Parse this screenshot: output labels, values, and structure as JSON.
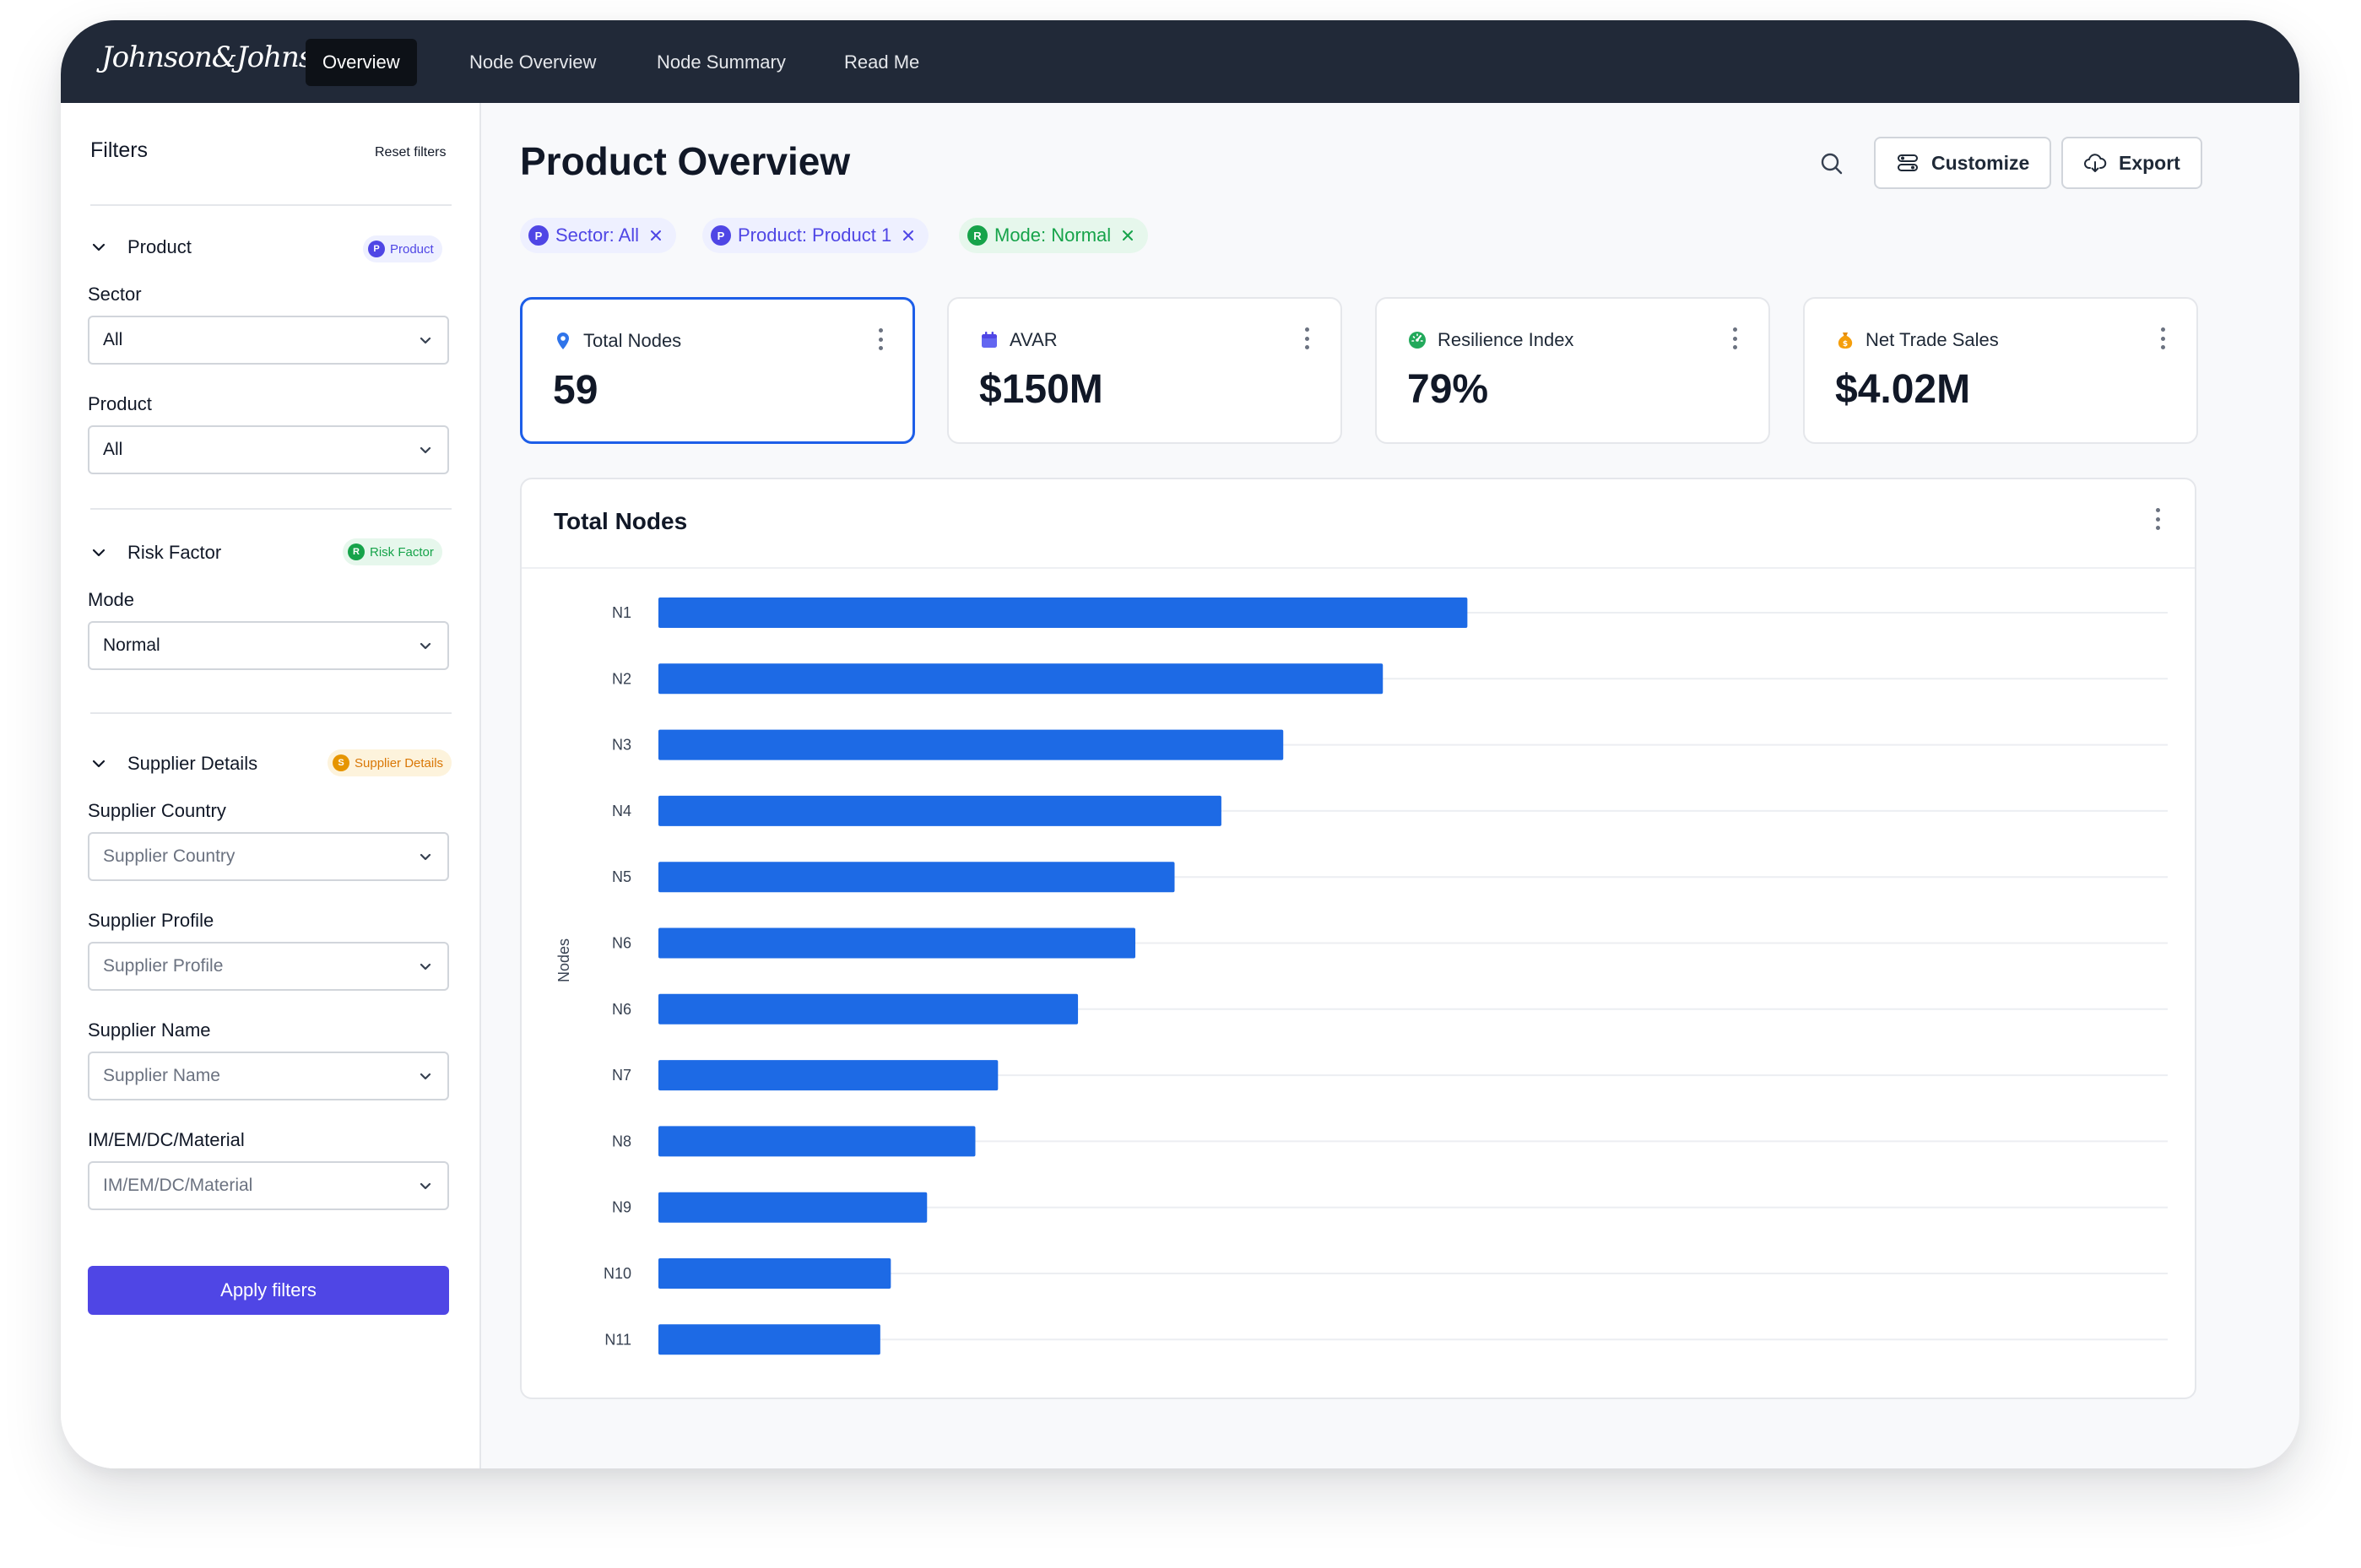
{
  "brand": {
    "logo_text": "Johnson&Johnson"
  },
  "nav": {
    "tabs": [
      {
        "label": "Overview",
        "active": true
      },
      {
        "label": "Node Overview",
        "active": false
      },
      {
        "label": "Node Summary",
        "active": false
      },
      {
        "label": "Read Me",
        "active": false
      }
    ]
  },
  "sidebar": {
    "title": "Filters",
    "reset_label": "Reset filters",
    "sections": [
      {
        "title": "Product",
        "badge": "Product",
        "badge_letter": "P",
        "badge_color": "#4f46e5"
      },
      {
        "title": "Risk Factor",
        "badge": "Risk Factor",
        "badge_letter": "R",
        "badge_color": "#16a34a"
      },
      {
        "title": "Supplier Details",
        "badge": "Supplier Details",
        "badge_letter": "S",
        "badge_color": "#e69500"
      }
    ],
    "fields": {
      "sector": {
        "label": "Sector",
        "value": "All"
      },
      "product": {
        "label": "Product",
        "value": "All"
      },
      "mode": {
        "label": "Mode",
        "value": "Normal"
      },
      "supplier_country": {
        "label": "Supplier Country",
        "placeholder": "Supplier Country"
      },
      "supplier_profile": {
        "label": "Supplier Profile",
        "placeholder": "Supplier Profile"
      },
      "supplier_name": {
        "label": "Supplier Name",
        "placeholder": "Supplier Name"
      },
      "material": {
        "label": "IM/EM/DC/Material",
        "placeholder": "IM/EM/DC/Material"
      }
    },
    "apply_label": "Apply filters"
  },
  "main": {
    "title": "Product Overview",
    "customize_label": "Customize",
    "export_label": "Export",
    "active_filters": [
      {
        "label": "Sector: All",
        "letter": "P"
      },
      {
        "label": "Product: Product 1",
        "letter": "P"
      },
      {
        "label": "Mode: Normal",
        "letter": "R"
      }
    ],
    "kpis": [
      {
        "label": "Total Nodes",
        "value": "59",
        "icon": "map-pin-icon",
        "selected": true
      },
      {
        "label": "AVAR",
        "value": "$150M",
        "icon": "calendar-box-icon",
        "selected": false
      },
      {
        "label": "Resilience Index",
        "value": "79%",
        "icon": "gauge-icon",
        "selected": false
      },
      {
        "label": "Net Trade Sales",
        "value": "$4.02M",
        "icon": "money-bag-icon",
        "selected": false
      }
    ]
  },
  "colors": {
    "accent": "#4f46e5",
    "bar": "#1d6ae5",
    "nav_bg": "#212938",
    "selected_border": "#1d5ee8"
  },
  "chart_data": {
    "type": "bar",
    "orientation": "horizontal",
    "title": "Total Nodes",
    "ylabel": "Nodes",
    "xlabel": "",
    "categories": [
      "N1",
      "N2",
      "N3",
      "N4",
      "N5",
      "N6",
      "N6",
      "N7",
      "N8",
      "N9",
      "N10",
      "N11"
    ],
    "values": [
      53.6,
      48,
      41.4,
      37.3,
      34.2,
      31.6,
      27.8,
      22.5,
      21,
      17.8,
      15.4,
      14.7
    ],
    "xlim": [
      0,
      100
    ],
    "grid": true,
    "legend": "none"
  }
}
